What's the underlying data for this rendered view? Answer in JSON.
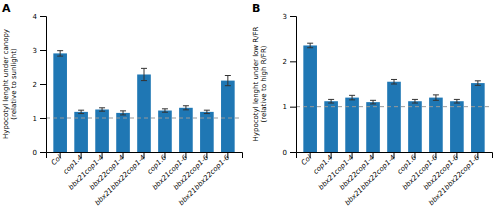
{
  "chart_data": [
    {
      "type": "bar",
      "title": "A",
      "ylabel": "Hypocotyl lenght under canopy\n(relative to sunlight)",
      "categories": [
        "Col",
        "cop1.4",
        "bbx21cop1-4",
        "bbx22cop1-4",
        "bbx21bbx22cop1-4",
        "cop1.6",
        "bbx21cop1-6",
        "bbx22cop1-6",
        "bbx21bbx22cop1-6"
      ],
      "values": [
        2.9,
        1.18,
        1.25,
        1.15,
        2.28,
        1.22,
        1.3,
        1.18,
        2.1
      ],
      "errors": [
        0.08,
        0.05,
        0.05,
        0.06,
        0.18,
        0.05,
        0.06,
        0.05,
        0.15
      ],
      "reference_line": 1.0,
      "ylim": [
        0,
        4
      ],
      "yticks": [
        0,
        1,
        2,
        3,
        4
      ],
      "grid": false
    },
    {
      "type": "bar",
      "title": "B",
      "ylabel": "Hypocotyl lenght under low R/FR\n(relative to high R/FR)",
      "categories": [
        "Col",
        "cop1.4",
        "bbx21cop1-4",
        "bbx22cop1-4",
        "bbx21bbx22cop1-4",
        "cop1.6",
        "bbx21cop1-6",
        "bbx22cop1-6",
        "bbx21bbx22cop1-6"
      ],
      "values": [
        2.35,
        1.12,
        1.2,
        1.1,
        1.55,
        1.12,
        1.2,
        1.12,
        1.52
      ],
      "errors": [
        0.05,
        0.04,
        0.05,
        0.04,
        0.05,
        0.04,
        0.06,
        0.04,
        0.05
      ],
      "reference_line": 1.0,
      "ylim": [
        0,
        3
      ],
      "yticks": [
        0,
        1,
        2,
        3
      ],
      "grid": false
    }
  ]
}
